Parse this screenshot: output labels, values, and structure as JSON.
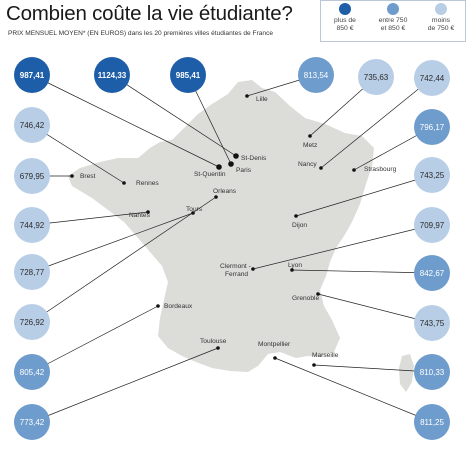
{
  "title": "Combien coûte la vie étudiante?",
  "subtitle": "PRIX MENSUEL MOYEN* (EN EUROS) dans les 20 premières villes étudiantes de France",
  "legend": [
    {
      "line1": "plus de",
      "line2": "850 €",
      "color": "#1e5ea8"
    },
    {
      "line1": "entre 750",
      "line2": "et 850 €",
      "color": "#6e9ccc"
    },
    {
      "line1": "moins",
      "line2": "de 750 €",
      "color": "#b8cde6"
    }
  ],
  "colors": {
    "high": "#1e5ea8",
    "mid": "#6e9ccc",
    "low": "#b8cde6",
    "land": "#dcdcd9"
  },
  "cities": [
    {
      "name": "St-Quentin",
      "value": "987,41",
      "tier": "high"
    },
    {
      "name": "St-Denis",
      "value": "1124,33",
      "tier": "high"
    },
    {
      "name": "Paris",
      "value": "985,41",
      "tier": "high"
    },
    {
      "name": "Lille",
      "value": "813,54",
      "tier": "mid"
    },
    {
      "name": "Metz",
      "value": "735,63",
      "tier": "low"
    },
    {
      "name": "Nancy",
      "value": "742,44",
      "tier": "low"
    },
    {
      "name": "Strasbourg",
      "value": "796,17",
      "tier": "mid"
    },
    {
      "name": "Rennes",
      "value": "746,42",
      "tier": "low"
    },
    {
      "name": "Brest",
      "value": "679,95",
      "tier": "low"
    },
    {
      "name": "Nantes",
      "value": "744,92",
      "tier": "low"
    },
    {
      "name": "Tours",
      "value": "728,77",
      "tier": "low"
    },
    {
      "name": "Orleans",
      "value": "726,92",
      "tier": "low"
    },
    {
      "name": "Dijon",
      "value": "743,25",
      "tier": "low"
    },
    {
      "name": "Clermont - Ferrand",
      "value": "709,97",
      "tier": "low"
    },
    {
      "name": "Lyon",
      "value": "842,67",
      "tier": "mid"
    },
    {
      "name": "Grenoble",
      "value": "743,75",
      "tier": "low"
    },
    {
      "name": "Bordeaux",
      "value": "805,42",
      "tier": "mid"
    },
    {
      "name": "Toulouse",
      "value": "773,42",
      "tier": "mid"
    },
    {
      "name": "Montpellier",
      "value": "811,25",
      "tier": "mid"
    },
    {
      "name": "Marseille",
      "value": "810,33",
      "tier": "mid"
    }
  ]
}
